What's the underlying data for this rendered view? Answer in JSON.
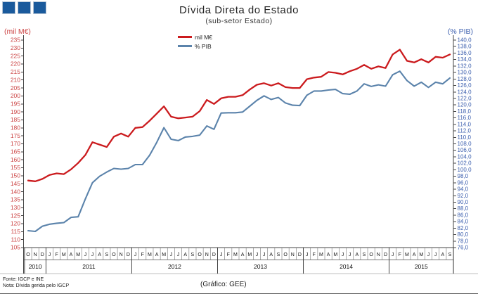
{
  "window": {
    "title": "Dívida Direta do Estado"
  },
  "logo": {
    "name": "three-squares-logo",
    "color": "#1a5a9c",
    "squares": 3
  },
  "header": {
    "title": "Dívida Direta do Estado",
    "subtitle": "(sub-setor Estado)"
  },
  "footer": {
    "source_line1": "Fonte: IGCP e INE",
    "source_line2": "Nota: Dívida gerida pelo IGCP",
    "credit": "(Gráfico: GEE)"
  },
  "chart_data": {
    "type": "line",
    "title": "Dívida Direta do Estado",
    "subtitle": "(sub-setor Estado)",
    "grid": false,
    "legend_position": "top-center",
    "left_axis": {
      "label": "(mil M€)",
      "min": 105,
      "max": 235,
      "step": 5,
      "color": "#cc4545",
      "tick_color": "#cc4545"
    },
    "right_axis": {
      "label": "(% PIB)",
      "min": 76,
      "max": 140,
      "step": 2,
      "color": "#3c5fae",
      "tick_color": "#3c5fae",
      "decimal_comma": true
    },
    "x": {
      "months": [
        "O",
        "N",
        "D",
        "J",
        "F",
        "M",
        "A",
        "M",
        "J",
        "J",
        "A",
        "S",
        "O",
        "N",
        "D",
        "J",
        "F",
        "M",
        "A",
        "M",
        "J",
        "J",
        "A",
        "S",
        "O",
        "N",
        "D",
        "J",
        "F",
        "M",
        "A",
        "M",
        "J",
        "J",
        "A",
        "S",
        "O",
        "N",
        "D",
        "J",
        "F",
        "M",
        "A",
        "M",
        "J",
        "J",
        "A",
        "S",
        "O",
        "N",
        "D",
        "J",
        "F",
        "M",
        "A",
        "M",
        "J",
        "J",
        "A",
        "S"
      ],
      "years": [
        {
          "label": "2010",
          "months": 3
        },
        {
          "label": "2011",
          "months": 12
        },
        {
          "label": "2012",
          "months": 12
        },
        {
          "label": "2013",
          "months": 12
        },
        {
          "label": "2014",
          "months": 12
        },
        {
          "label": "2015",
          "months": 9
        }
      ]
    },
    "series": [
      {
        "name": "mil M€",
        "axis": "left",
        "color": "#cb1b1e",
        "values": [
          147,
          146.5,
          148,
          150.5,
          151.5,
          151,
          154,
          158,
          163,
          171,
          169.5,
          168,
          174.5,
          176.5,
          174.5,
          180,
          180.5,
          184.5,
          189,
          193.5,
          187,
          186,
          186.5,
          187,
          190.5,
          197.5,
          195,
          198.5,
          199.5,
          199.5,
          200.5,
          204,
          207,
          208,
          206.5,
          208,
          205.5,
          205,
          205,
          210.5,
          211.5,
          212,
          215,
          214.5,
          213.5,
          215.5,
          217,
          219.5,
          217,
          218.5,
          217.5,
          226,
          229,
          222,
          221,
          223,
          221,
          224.5,
          224,
          226
        ]
      },
      {
        "name": "% PIB",
        "axis": "right",
        "color": "#5b83ab",
        "values": [
          81.2,
          81,
          82.6,
          83.2,
          83.5,
          83.7,
          85.3,
          85.5,
          91,
          96,
          98,
          99.3,
          100.4,
          100.2,
          100.4,
          101.6,
          101.6,
          104.5,
          108.5,
          113,
          109.4,
          109,
          110.1,
          110.3,
          110.7,
          113.5,
          112.5,
          117.5,
          117.6,
          117.6,
          117.8,
          119.6,
          121.4,
          122.8,
          121.7,
          122.3,
          120.6,
          119.9,
          119.8,
          123,
          124.3,
          124.3,
          124.6,
          124.8,
          123.5,
          123.3,
          124.3,
          126.5,
          125.7,
          126.2,
          125.8,
          129.3,
          130.4,
          127.5,
          125.8,
          127,
          125.4,
          127,
          126.5,
          128.3
        ]
      }
    ]
  }
}
